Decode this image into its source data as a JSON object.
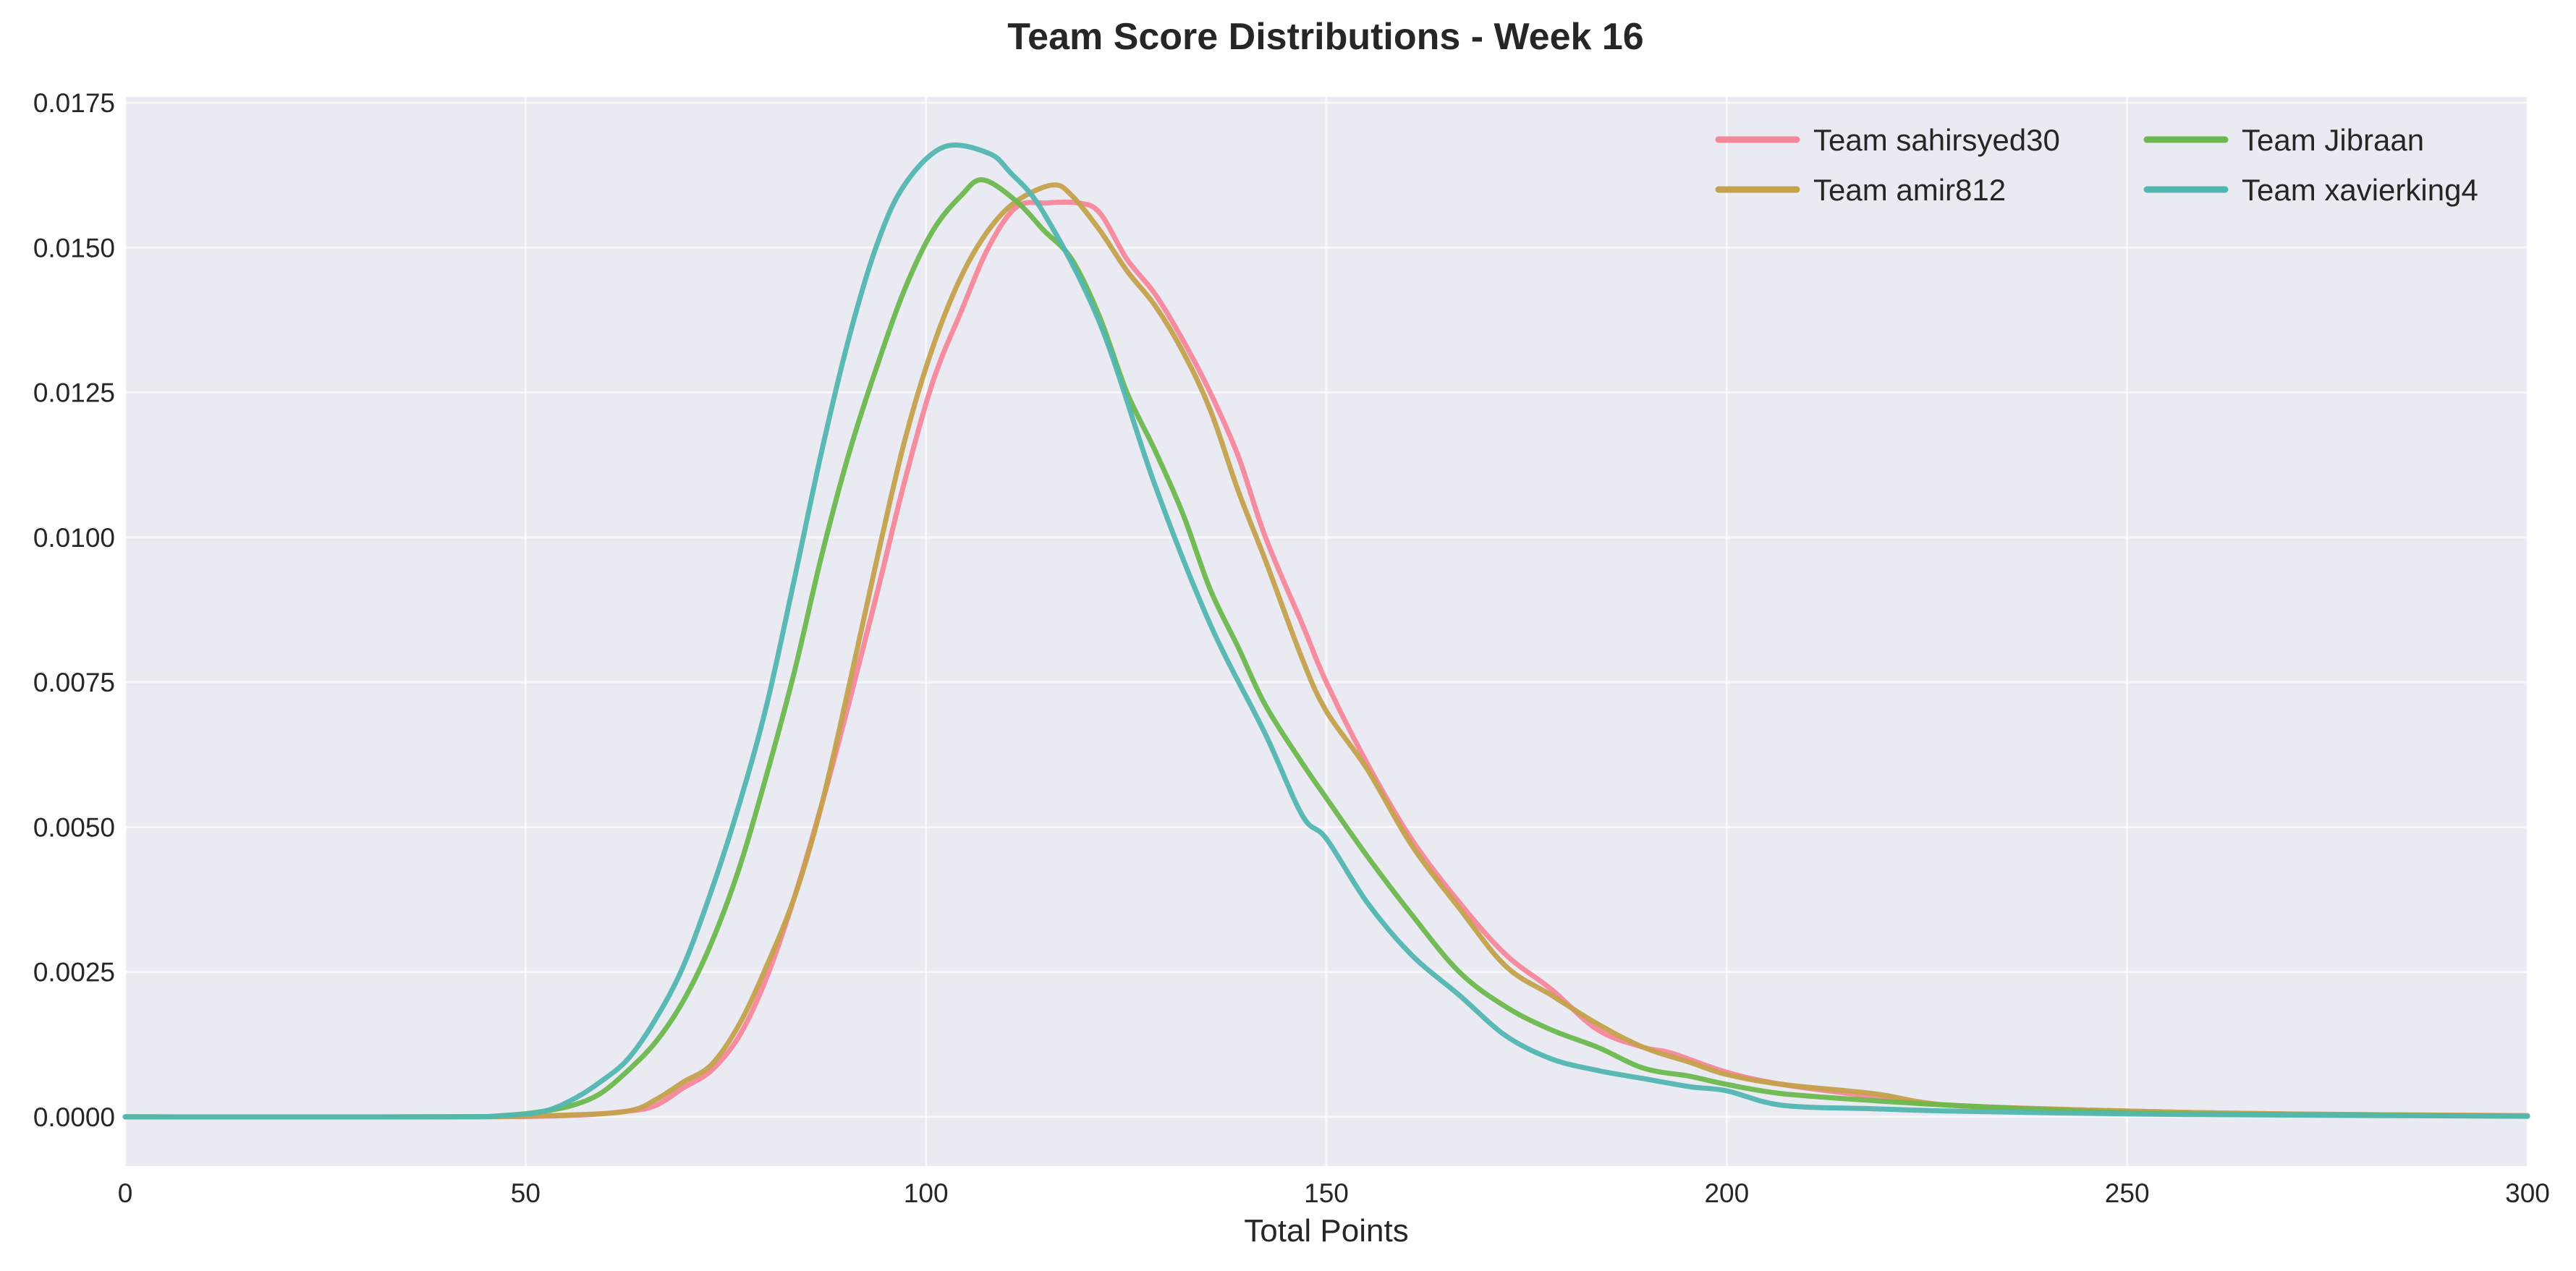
{
  "chart_data": {
    "type": "line",
    "title": "Team Score Distributions - Week 16",
    "xlabel": "Total Points",
    "ylabel": "",
    "xlim": [
      0,
      300
    ],
    "ylim": [
      -0.00085,
      0.0176
    ],
    "xticks": [
      "0",
      "50",
      "100",
      "150",
      "200",
      "250",
      "300"
    ],
    "yticks": [
      "0.0000",
      "0.0025",
      "0.0050",
      "0.0075",
      "0.0100",
      "0.0125",
      "0.0150",
      "0.0175"
    ],
    "grid": true,
    "background_color": "#eaeaf2",
    "legend": {
      "placement": "top-right",
      "columns": 2
    },
    "series": [
      {
        "name": "Team sahirsyed30",
        "color": "#f5879a",
        "points": [
          [
            0,
            0
          ],
          [
            40,
            0
          ],
          [
            55,
            2e-05
          ],
          [
            62.8,
            0.0001
          ],
          [
            66.3,
            0.0002
          ],
          [
            69.7,
            0.0005
          ],
          [
            73.2,
            0.0008
          ],
          [
            76.7,
            0.0014
          ],
          [
            80.1,
            0.0024
          ],
          [
            83.6,
            0.0038
          ],
          [
            87,
            0.0054
          ],
          [
            90.5,
            0.0072
          ],
          [
            94,
            0.0091
          ],
          [
            97.4,
            0.011
          ],
          [
            100.9,
            0.0127
          ],
          [
            104.4,
            0.0139
          ],
          [
            107.8,
            0.015
          ],
          [
            111.3,
            0.0157
          ],
          [
            115,
            0.01577
          ],
          [
            119,
            0.01577
          ],
          [
            121.7,
            0.0156
          ],
          [
            125.1,
            0.0148
          ],
          [
            128.6,
            0.0142
          ],
          [
            132.1,
            0.0134
          ],
          [
            135.5,
            0.0125
          ],
          [
            139,
            0.0114
          ],
          [
            142.4,
            0.01
          ],
          [
            147,
            0.0085
          ],
          [
            150,
            0.0075
          ],
          [
            155.1,
            0.0061
          ],
          [
            160.6,
            0.0048
          ],
          [
            166.6,
            0.0037
          ],
          [
            172.4,
            0.0028
          ],
          [
            178.1,
            0.0022
          ],
          [
            183.9,
            0.0015
          ],
          [
            189.6,
            0.0012
          ],
          [
            193.1,
            0.0011
          ],
          [
            200,
            0.00077
          ],
          [
            206.9,
            0.00056
          ],
          [
            218.4,
            0.00035
          ],
          [
            228,
            0.0002
          ],
          [
            250,
            0.0001
          ],
          [
            270,
            5e-05
          ],
          [
            300,
            2e-05
          ]
        ]
      },
      {
        "name": "Team amir812",
        "color": "#c4a24c",
        "points": [
          [
            0,
            0
          ],
          [
            40,
            0
          ],
          [
            55,
            3e-05
          ],
          [
            62.8,
            0.0001
          ],
          [
            66.3,
            0.0003
          ],
          [
            69.7,
            0.0006
          ],
          [
            73.2,
            0.0009
          ],
          [
            76.7,
            0.0016
          ],
          [
            80.1,
            0.0026
          ],
          [
            83.6,
            0.0038
          ],
          [
            87,
            0.0054
          ],
          [
            90.5,
            0.0075
          ],
          [
            94,
            0.0097
          ],
          [
            97.4,
            0.0117
          ],
          [
            100.9,
            0.0133
          ],
          [
            104.4,
            0.0145
          ],
          [
            107.8,
            0.0153
          ],
          [
            111.3,
            0.0158
          ],
          [
            115.8,
            0.01608
          ],
          [
            118.2,
            0.0159
          ],
          [
            121.7,
            0.0153
          ],
          [
            125.1,
            0.0146
          ],
          [
            128.6,
            0.014
          ],
          [
            132.1,
            0.0132
          ],
          [
            135.5,
            0.0122
          ],
          [
            139,
            0.0108
          ],
          [
            142.4,
            0.0096
          ],
          [
            147,
            0.0079
          ],
          [
            150,
            0.007
          ],
          [
            155.1,
            0.006
          ],
          [
            160.6,
            0.0047
          ],
          [
            166.6,
            0.0036
          ],
          [
            172.4,
            0.0026
          ],
          [
            178.1,
            0.0021
          ],
          [
            183.9,
            0.0016
          ],
          [
            189.6,
            0.0012
          ],
          [
            195.4,
            0.00094
          ],
          [
            200,
            0.00073
          ],
          [
            206.9,
            0.00056
          ],
          [
            218.4,
            0.0004
          ],
          [
            228,
            0.0002
          ],
          [
            250,
            0.0001
          ],
          [
            270,
            5e-05
          ],
          [
            300,
            2e-05
          ]
        ]
      },
      {
        "name": "Team Jibraan",
        "color": "#6cb84e",
        "points": [
          [
            0,
            0
          ],
          [
            40,
            0
          ],
          [
            48,
            3e-05
          ],
          [
            52.4,
            0.0001
          ],
          [
            55.9,
            0.0002
          ],
          [
            59.3,
            0.0004
          ],
          [
            62.8,
            0.0008
          ],
          [
            66.3,
            0.0013
          ],
          [
            69.7,
            0.002
          ],
          [
            73.2,
            0.003
          ],
          [
            76.7,
            0.0043
          ],
          [
            80.1,
            0.0059
          ],
          [
            83.6,
            0.0077
          ],
          [
            87,
            0.0097
          ],
          [
            90.5,
            0.0115
          ],
          [
            94,
            0.013
          ],
          [
            97.4,
            0.0143
          ],
          [
            100.9,
            0.0153
          ],
          [
            104.4,
            0.0159
          ],
          [
            107.1,
            0.01617
          ],
          [
            111.3,
            0.0158
          ],
          [
            114.7,
            0.0153
          ],
          [
            118.2,
            0.0148
          ],
          [
            121.7,
            0.0138
          ],
          [
            125.1,
            0.0125
          ],
          [
            128.6,
            0.0115
          ],
          [
            132.1,
            0.0104
          ],
          [
            135.5,
            0.0091
          ],
          [
            139,
            0.0081
          ],
          [
            142.4,
            0.0071
          ],
          [
            147,
            0.0061
          ],
          [
            150,
            0.0055
          ],
          [
            155.1,
            0.0045
          ],
          [
            160.6,
            0.0035
          ],
          [
            166.6,
            0.0025
          ],
          [
            172.4,
            0.0019
          ],
          [
            178.1,
            0.0015
          ],
          [
            183.9,
            0.0012
          ],
          [
            189.6,
            0.00084
          ],
          [
            195.4,
            0.0007
          ],
          [
            200,
            0.00056
          ],
          [
            206.9,
            0.0004
          ],
          [
            218.4,
            0.00028
          ],
          [
            228,
            0.0002
          ],
          [
            250,
            7e-05
          ],
          [
            270,
            4e-05
          ],
          [
            300,
            1e-05
          ]
        ]
      },
      {
        "name": "Team xavierking4",
        "color": "#52b6b0",
        "points": [
          [
            0,
            0
          ],
          [
            40,
            0
          ],
          [
            48,
            3e-05
          ],
          [
            52.4,
            0.0001
          ],
          [
            55.9,
            0.0003
          ],
          [
            59.3,
            0.0006
          ],
          [
            62.8,
            0.001
          ],
          [
            66.3,
            0.0017
          ],
          [
            69.7,
            0.0026
          ],
          [
            73.2,
            0.0039
          ],
          [
            76.7,
            0.0054
          ],
          [
            80.1,
            0.0071
          ],
          [
            83.6,
            0.0093
          ],
          [
            87,
            0.0115
          ],
          [
            90.5,
            0.0135
          ],
          [
            94,
            0.0151
          ],
          [
            97.4,
            0.0161
          ],
          [
            102.3,
            0.01674
          ],
          [
            107.8,
            0.01663
          ],
          [
            110.5,
            0.0163
          ],
          [
            114.7,
            0.0156
          ],
          [
            121.7,
            0.0137
          ],
          [
            128.6,
            0.0109
          ],
          [
            135.5,
            0.0085
          ],
          [
            142.4,
            0.0066
          ],
          [
            147,
            0.0052
          ],
          [
            150,
            0.0048
          ],
          [
            155.1,
            0.0037
          ],
          [
            160.6,
            0.0028
          ],
          [
            166.6,
            0.0021
          ],
          [
            172.4,
            0.0014
          ],
          [
            178.1,
            0.001
          ],
          [
            183.9,
            0.0008
          ],
          [
            189.6,
            0.00066
          ],
          [
            195.4,
            0.00052
          ],
          [
            200,
            0.00045
          ],
          [
            206.9,
            0.0002
          ],
          [
            218.4,
            0.00014
          ],
          [
            228,
            0.0001
          ],
          [
            250,
            5e-05
          ],
          [
            270,
            3e-05
          ],
          [
            300,
            1e-05
          ]
        ]
      }
    ]
  }
}
